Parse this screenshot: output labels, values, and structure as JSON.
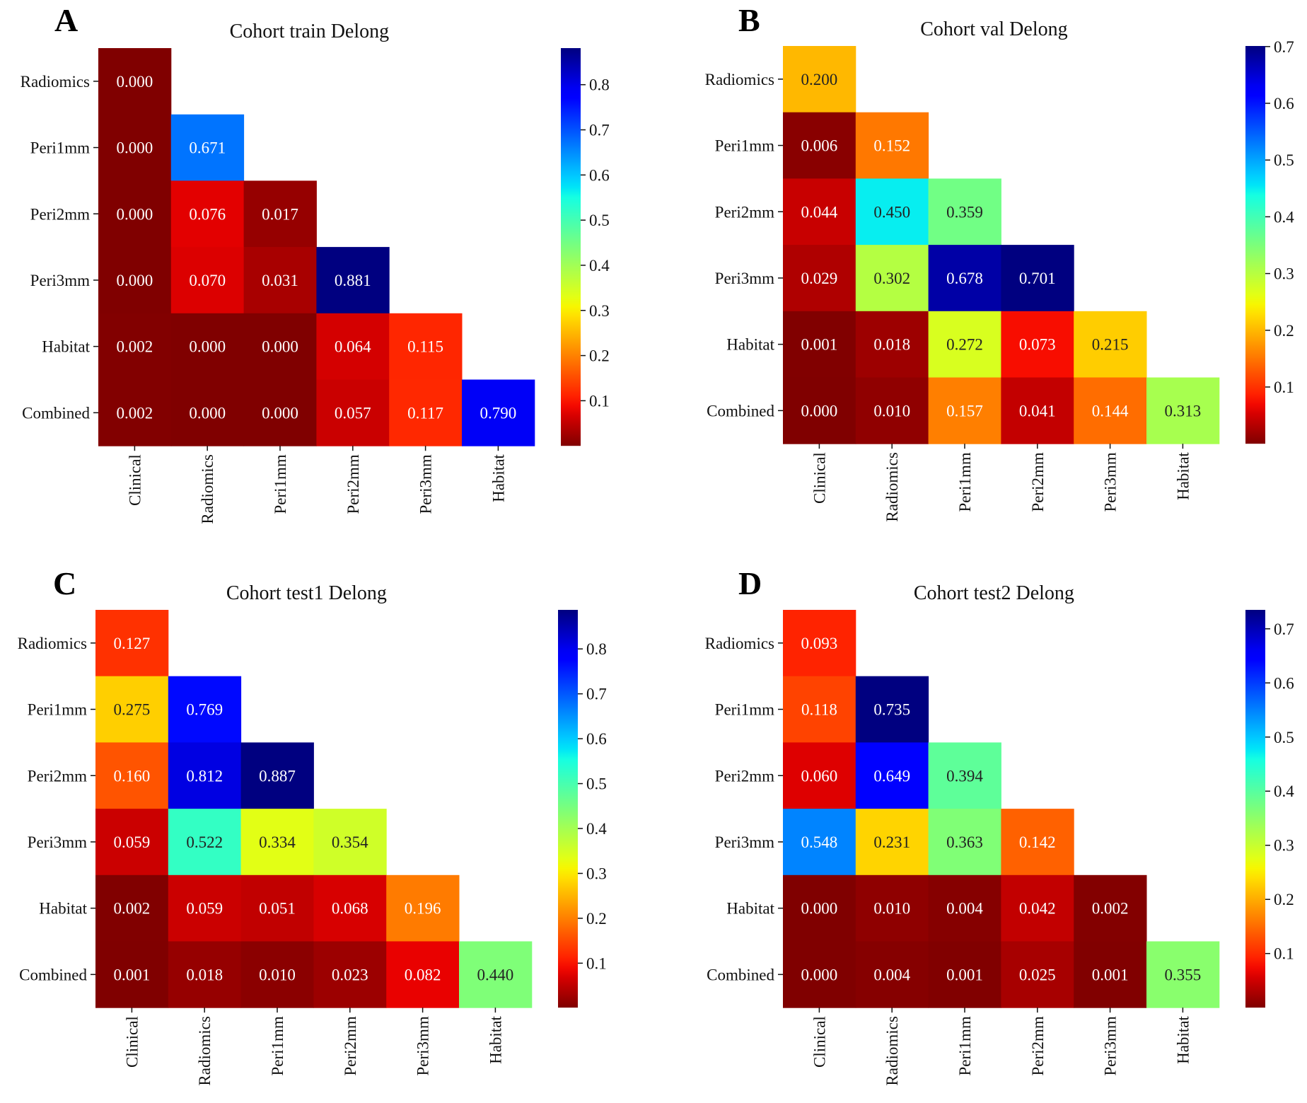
{
  "chart_data": [
    {
      "type": "heatmap",
      "panel": "A",
      "title": "Cohort train Delong",
      "row_labels": [
        "Radiomics",
        "Peri1mm",
        "Peri2mm",
        "Peri3mm",
        "Habitat",
        "Combined"
      ],
      "col_labels": [
        "Clinical",
        "Radiomics",
        "Peri1mm",
        "Peri2mm",
        "Peri3mm",
        "Habitat"
      ],
      "values": [
        [
          0.0
        ],
        [
          0.0,
          0.671
        ],
        [
          0.0,
          0.076,
          0.017
        ],
        [
          0.0,
          0.07,
          0.031,
          0.881
        ],
        [
          0.002,
          0.0,
          0.0,
          0.064,
          0.115
        ],
        [
          0.002,
          0.0,
          0.0,
          0.057,
          0.117,
          0.79
        ]
      ],
      "colormap": "jet_r",
      "colorbar_range": [
        0.0,
        0.881
      ],
      "colorbar_ticks": [
        "0.1",
        "0.2",
        "0.3",
        "0.4",
        "0.5",
        "0.6",
        "0.7",
        "0.8"
      ]
    },
    {
      "type": "heatmap",
      "panel": "B",
      "title": "Cohort val Delong",
      "row_labels": [
        "Radiomics",
        "Peri1mm",
        "Peri2mm",
        "Peri3mm",
        "Habitat",
        "Combined"
      ],
      "col_labels": [
        "Clinical",
        "Radiomics",
        "Peri1mm",
        "Peri2mm",
        "Peri3mm",
        "Habitat"
      ],
      "values": [
        [
          0.2
        ],
        [
          0.006,
          0.152
        ],
        [
          0.044,
          0.45,
          0.359
        ],
        [
          0.029,
          0.302,
          0.678,
          0.701
        ],
        [
          0.001,
          0.018,
          0.272,
          0.073,
          0.215
        ],
        [
          0.0,
          0.01,
          0.157,
          0.041,
          0.144,
          0.313
        ]
      ],
      "colormap": "jet_r",
      "colorbar_range": [
        0.0,
        0.701
      ],
      "colorbar_ticks": [
        "0.1",
        "0.2",
        "0.3",
        "0.4",
        "0.5",
        "0.6",
        "0.7"
      ]
    },
    {
      "type": "heatmap",
      "panel": "C",
      "title": "Cohort test1 Delong",
      "row_labels": [
        "Radiomics",
        "Peri1mm",
        "Peri2mm",
        "Peri3mm",
        "Habitat",
        "Combined"
      ],
      "col_labels": [
        "Clinical",
        "Radiomics",
        "Peri1mm",
        "Peri2mm",
        "Peri3mm",
        "Habitat"
      ],
      "values": [
        [
          0.127
        ],
        [
          0.275,
          0.769
        ],
        [
          0.16,
          0.812,
          0.887
        ],
        [
          0.059,
          0.522,
          0.334,
          0.354
        ],
        [
          0.002,
          0.059,
          0.051,
          0.068,
          0.196
        ],
        [
          0.001,
          0.018,
          0.01,
          0.023,
          0.082,
          0.44
        ]
      ],
      "colormap": "jet_r",
      "colorbar_range": [
        0.001,
        0.887
      ],
      "colorbar_ticks": [
        "0.1",
        "0.2",
        "0.3",
        "0.4",
        "0.5",
        "0.6",
        "0.7",
        "0.8"
      ]
    },
    {
      "type": "heatmap",
      "panel": "D",
      "title": "Cohort test2 Delong",
      "row_labels": [
        "Radiomics",
        "Peri1mm",
        "Peri2mm",
        "Peri3mm",
        "Habitat",
        "Combined"
      ],
      "col_labels": [
        "Clinical",
        "Radiomics",
        "Peri1mm",
        "Peri2mm",
        "Peri3mm",
        "Habitat"
      ],
      "values": [
        [
          0.093
        ],
        [
          0.118,
          0.735
        ],
        [
          0.06,
          0.649,
          0.394
        ],
        [
          0.548,
          0.231,
          0.363,
          0.142
        ],
        [
          0.0,
          0.01,
          0.004,
          0.042,
          0.002
        ],
        [
          0.0,
          0.004,
          0.001,
          0.025,
          0.001,
          0.355
        ]
      ],
      "colormap": "jet_r",
      "colorbar_range": [
        0.0,
        0.735
      ],
      "colorbar_ticks": [
        "0.1",
        "0.2",
        "0.3",
        "0.4",
        "0.5",
        "0.6",
        "0.7"
      ]
    }
  ]
}
